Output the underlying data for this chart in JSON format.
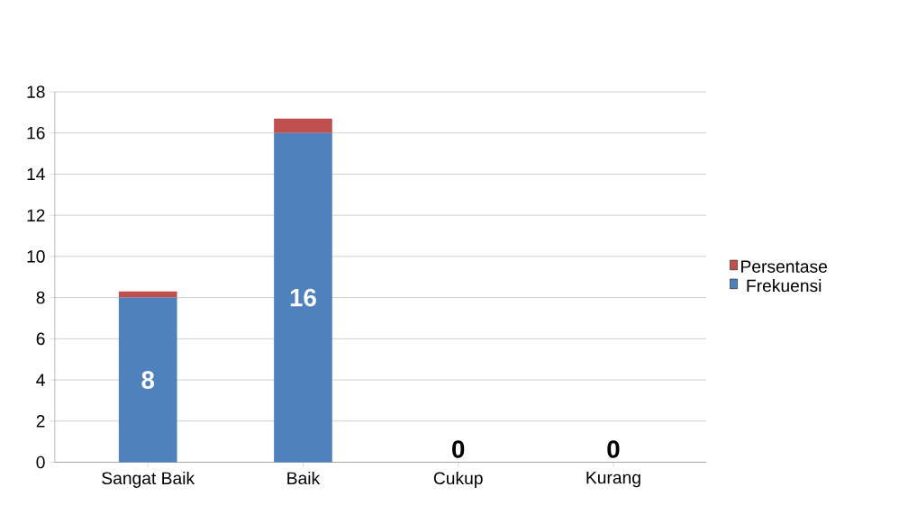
{
  "chart_data": {
    "type": "bar",
    "stacked": true,
    "categories": [
      "Sangat Baik",
      "Baik",
      "Cukup",
      "Kurang"
    ],
    "series": [
      {
        "name": "Frekuensi",
        "color": "#4f81bd",
        "values": [
          8,
          16,
          0,
          0
        ],
        "value_labels": [
          "8",
          "16",
          "0",
          "0"
        ]
      },
      {
        "name": "Persentase",
        "color": "#c0504d",
        "values": [
          0.3,
          0.7,
          0,
          0
        ]
      }
    ],
    "ylim": [
      0,
      18
    ],
    "yticks": [
      0,
      2,
      4,
      6,
      8,
      10,
      12,
      14,
      16,
      18
    ],
    "grid": "y",
    "legend": "right"
  }
}
